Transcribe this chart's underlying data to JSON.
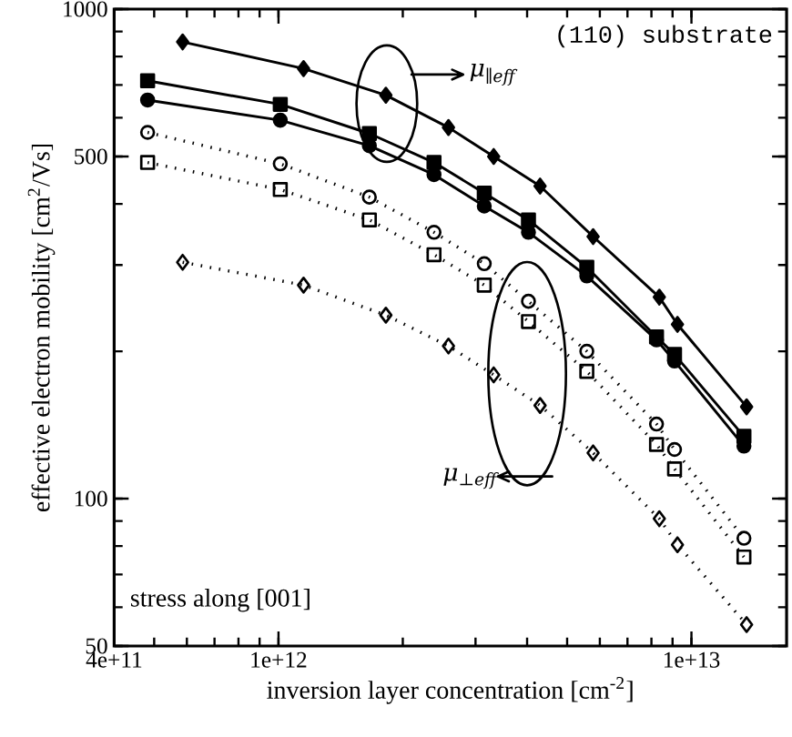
{
  "chart_data": {
    "type": "line",
    "xlabel": "inversion layer concentration [cm$^{-2}$]",
    "ylabel": "effective electron mobility [cm$^{2}$/Vs]",
    "log": "xy",
    "grid": false,
    "xlim": [
      400000000000.0,
      17000000000000.0
    ],
    "ylim": [
      50,
      1000
    ],
    "xticks": [
      {
        "value": 400000000000.0,
        "label": "4e+11"
      },
      {
        "value": 1000000000000.0,
        "label": "1e+12"
      },
      {
        "value": 10000000000000.0,
        "label": "1e+13"
      }
    ],
    "yticks": [
      50,
      100,
      500,
      1000
    ],
    "annotations": [
      "(110) substrate",
      "stress along [001]",
      "μ$_{∥eff}$",
      "μ$_{⊥eff}$"
    ],
    "series": [
      {
        "color": "#000000",
        "marker": "diamond",
        "line_style": "solid",
        "x": [
          586000000000.0,
          1150000000000.0,
          1820000000000.0,
          2580000000000.0,
          3320000000000.0,
          4300000000000.0,
          5780000000000.0,
          8360000000000.0,
          9250000000000.0,
          13600000000000.0
        ],
        "values": [
          857,
          756,
          667,
          573,
          500,
          435,
          343,
          258,
          227,
          154
        ]
      },
      {
        "color": "#000000",
        "marker": "square",
        "line_style": "solid",
        "x": [
          482000000000.0,
          1010000000000.0,
          1660000000000.0,
          2380000000000.0,
          3150000000000.0,
          4030000000000.0,
          5580000000000.0,
          8230000000000.0,
          9100000000000.0,
          13400000000000.0
        ],
        "values": [
          714,
          639,
          557,
          486,
          421,
          371,
          297,
          214,
          197,
          134
        ]
      },
      {
        "color": "#000000",
        "marker": "circle",
        "line_style": "solid",
        "x": [
          482000000000.0,
          1010000000000.0,
          1660000000000.0,
          2380000000000.0,
          3150000000000.0,
          4030000000000.0,
          5580000000000.0,
          8230000000000.0,
          9100000000000.0,
          13400000000000.0
        ],
        "values": [
          652,
          593,
          526,
          459,
          396,
          350,
          285,
          211,
          191,
          128
        ]
      },
      {
        "color": "#000000",
        "marker": "circle",
        "line_style": "dotted",
        "x": [
          482000000000.0,
          1010000000000.0,
          1660000000000.0,
          2380000000000.0,
          3150000000000.0,
          4030000000000.0,
          5580000000000.0,
          8230000000000.0,
          9100000000000.0,
          13400000000000.0
        ],
        "values": [
          560,
          483,
          413,
          350,
          302,
          253,
          200,
          142,
          126,
          83
        ]
      },
      {
        "color": "#000000",
        "marker": "square",
        "line_style": "dotted",
        "x": [
          482000000000.0,
          1010000000000.0,
          1660000000000.0,
          2380000000000.0,
          3150000000000.0,
          4030000000000.0,
          5580000000000.0,
          8230000000000.0,
          9100000000000.0,
          13400000000000.0
        ],
        "values": [
          486,
          428,
          371,
          315,
          273,
          230,
          182,
          129,
          115,
          76
        ]
      },
      {
        "color": "#000000",
        "marker": "diamond",
        "line_style": "dotted",
        "x": [
          586000000000.0,
          1150000000000.0,
          1820000000000.0,
          2580000000000.0,
          3320000000000.0,
          4300000000000.0,
          5780000000000.0,
          8360000000000.0,
          9250000000000.0,
          13600000000000.0
        ],
        "values": [
          304,
          273,
          237,
          205,
          179,
          155,
          124,
          91,
          80.5,
          55.3
        ]
      }
    ]
  }
}
